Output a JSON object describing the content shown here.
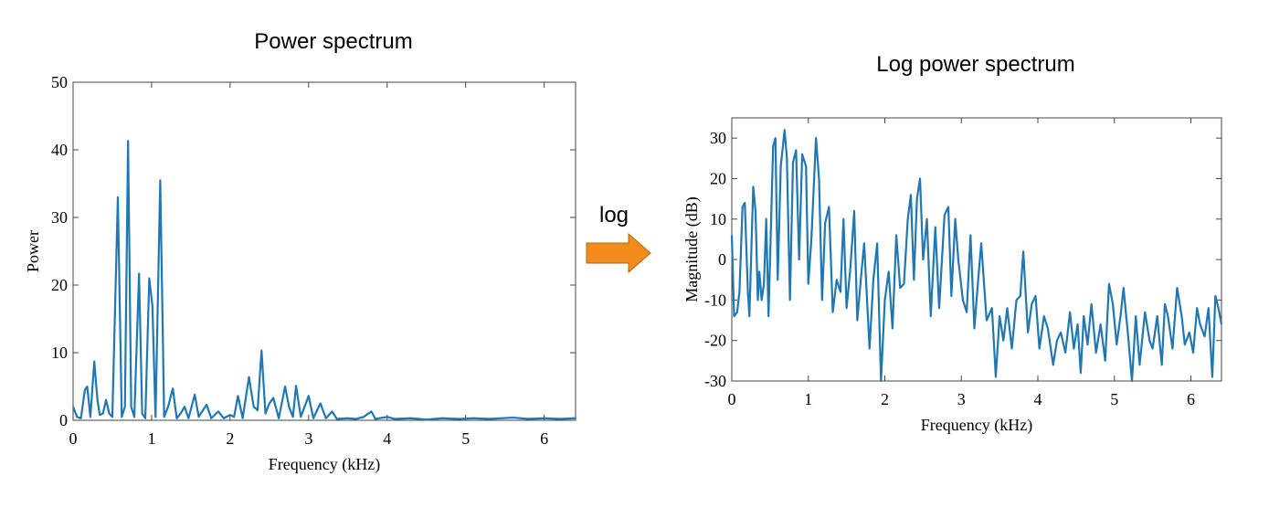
{
  "chart_data": [
    {
      "type": "line",
      "title": "Power spectrum",
      "xlabel": "Frequency (kHz)",
      "ylabel": "Power",
      "color": "#1f77b4",
      "x": [
        0,
        0.05,
        0.1,
        0.15,
        0.18,
        0.22,
        0.27,
        0.31,
        0.34,
        0.38,
        0.42,
        0.46,
        0.5,
        0.57,
        0.62,
        0.66,
        0.7,
        0.74,
        0.78,
        0.84,
        0.88,
        0.92,
        0.97,
        1.01,
        1.05,
        1.11,
        1.16,
        1.21,
        1.27,
        1.32,
        1.37,
        1.42,
        1.47,
        1.55,
        1.6,
        1.7,
        1.76,
        1.85,
        1.92,
        2.0,
        2.05,
        2.1,
        2.16,
        2.24,
        2.3,
        2.35,
        2.4,
        2.45,
        2.5,
        2.55,
        2.62,
        2.7,
        2.75,
        2.8,
        2.84,
        2.9,
        3.0,
        3.06,
        3.15,
        3.22,
        3.3,
        3.36,
        3.5,
        3.6,
        3.7,
        3.8,
        3.85,
        4.0,
        4.1,
        4.3,
        4.5,
        4.7,
        4.9,
        5.1,
        5.3,
        5.6,
        5.8,
        6.0,
        6.2,
        6.4
      ],
      "values": [
        2,
        0.5,
        0.3,
        4.5,
        5,
        0.5,
        8.7,
        3,
        0.8,
        1,
        3,
        1,
        0.5,
        33,
        0.5,
        2,
        41.3,
        2,
        0.5,
        21.7,
        1,
        0.3,
        21,
        17,
        0.5,
        35.5,
        0.5,
        2,
        4.7,
        0.3,
        1,
        2,
        0.3,
        3.8,
        0.5,
        2.3,
        0.3,
        1.3,
        0.3,
        0.8,
        0.5,
        3.6,
        0.3,
        6.4,
        2,
        1.5,
        10.3,
        1,
        2.5,
        3.3,
        0.3,
        5,
        2,
        0.5,
        5.1,
        0.5,
        3.6,
        0.3,
        2.5,
        0.3,
        1.3,
        0.2,
        0.3,
        0.2,
        0.5,
        1.3,
        0.2,
        0.5,
        0.2,
        0.3,
        0.1,
        0.3,
        0.2,
        0.3,
        0.2,
        0.4,
        0.2,
        0.3,
        0.2,
        0.3
      ],
      "xlim": [
        0,
        6.4
      ],
      "xticks": [
        0,
        1,
        2,
        3,
        4,
        5,
        6
      ],
      "ylim": [
        0,
        50
      ],
      "yticks": [
        0,
        10,
        20,
        30,
        40,
        50
      ]
    },
    {
      "type": "line",
      "title": "Log power spectrum",
      "xlabel": "Frequency (kHz)",
      "ylabel": "Magnitude (dB)",
      "color": "#1f77b4",
      "x": [
        0,
        0.03,
        0.07,
        0.1,
        0.14,
        0.17,
        0.21,
        0.23,
        0.28,
        0.31,
        0.34,
        0.36,
        0.39,
        0.42,
        0.45,
        0.48,
        0.54,
        0.57,
        0.6,
        0.64,
        0.69,
        0.72,
        0.76,
        0.8,
        0.84,
        0.88,
        0.92,
        0.97,
        1.0,
        1.04,
        1.1,
        1.14,
        1.18,
        1.22,
        1.27,
        1.32,
        1.37,
        1.42,
        1.46,
        1.5,
        1.55,
        1.6,
        1.64,
        1.7,
        1.73,
        1.8,
        1.85,
        1.9,
        1.95,
        2.0,
        2.05,
        2.1,
        2.15,
        2.2,
        2.25,
        2.3,
        2.34,
        2.38,
        2.42,
        2.46,
        2.5,
        2.55,
        2.6,
        2.66,
        2.71,
        2.78,
        2.83,
        2.87,
        2.92,
        2.96,
        3.02,
        3.07,
        3.12,
        3.17,
        3.22,
        3.26,
        3.33,
        3.4,
        3.45,
        3.5,
        3.55,
        3.6,
        3.66,
        3.72,
        3.77,
        3.81,
        3.87,
        3.92,
        3.97,
        4.02,
        4.08,
        4.13,
        4.2,
        4.25,
        4.3,
        4.36,
        4.42,
        4.47,
        4.52,
        4.56,
        4.6,
        4.65,
        4.7,
        4.76,
        4.82,
        4.88,
        4.93,
        4.98,
        5.03,
        5.08,
        5.12,
        5.18,
        5.23,
        5.28,
        5.33,
        5.4,
        5.46,
        5.5,
        5.56,
        5.62,
        5.66,
        5.7,
        5.76,
        5.82,
        5.88,
        5.92,
        5.98,
        6.03,
        6.08,
        6.12,
        6.18,
        6.23,
        6.28,
        6.32,
        6.36,
        6.4
      ],
      "values": [
        6,
        -14,
        -13,
        -8,
        13,
        14,
        -8,
        -14,
        18,
        12,
        -10,
        -3,
        -10,
        -6,
        10,
        -14,
        28,
        30,
        -5,
        23,
        32,
        25,
        -10,
        24,
        27,
        0,
        26,
        23,
        -6,
        5,
        30,
        20,
        -10,
        9,
        13,
        -13,
        -5,
        -8,
        10,
        -12,
        -2,
        12,
        -15,
        -2,
        4,
        -22,
        -5,
        4,
        -30,
        -10,
        -3,
        -17,
        6,
        -7,
        -6,
        10,
        16,
        -5,
        15,
        20,
        0,
        10,
        -14,
        8,
        -12,
        11,
        13,
        -9,
        10,
        0,
        -10,
        -13,
        6,
        -17,
        -5,
        4,
        -15,
        -12,
        -29,
        -14,
        -20,
        -12,
        -22,
        -10,
        -9,
        2,
        -18,
        -11,
        -9,
        -22,
        -14,
        -17,
        -26,
        -20,
        -18,
        -23,
        -13,
        -22,
        -16,
        -28,
        -14,
        -21,
        -11,
        -23,
        -16,
        -25,
        -6,
        -11,
        -21,
        -14,
        -7,
        -19,
        -30,
        -14,
        -26,
        -13,
        -20,
        -22,
        -14,
        -26,
        -11,
        -14,
        -22,
        -7,
        -14,
        -21,
        -18,
        -23,
        -12,
        -16,
        -19,
        -12,
        -29,
        -9,
        -12,
        -16
      ],
      "xlim": [
        0,
        6.4
      ],
      "xticks": [
        0,
        1,
        2,
        3,
        4,
        5,
        6
      ],
      "ylim": [
        -30,
        35
      ],
      "yticks": [
        -30,
        -20,
        -10,
        0,
        10,
        20,
        30
      ]
    }
  ],
  "arrow_label": "log"
}
